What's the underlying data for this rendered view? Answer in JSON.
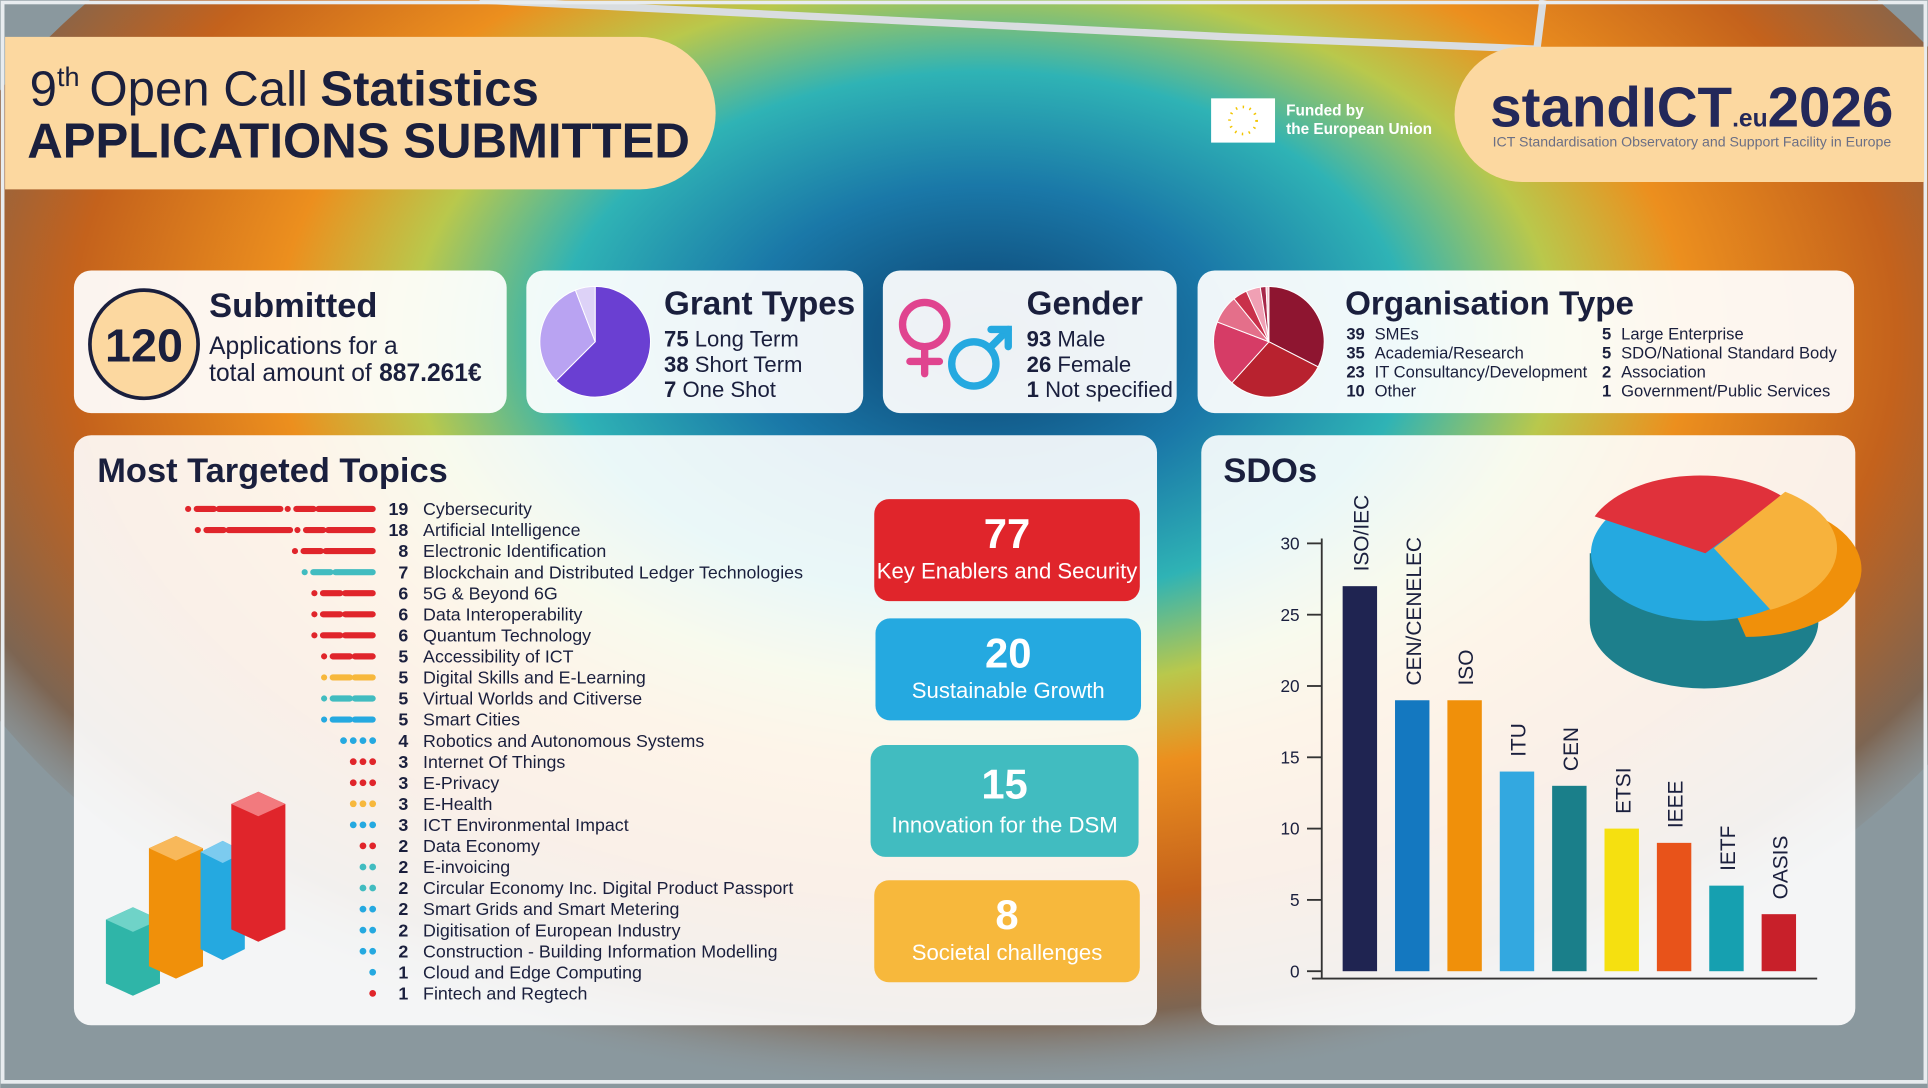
{
  "header": {
    "number": "9",
    "ordinal": "th",
    "call": "Open Call",
    "statistics": "Statistics",
    "subtitle": "APPLICATIONS SUBMITTED"
  },
  "funding": {
    "line1": "Funded by",
    "line2": "the European Union"
  },
  "logo": {
    "name_a": "stand",
    "name_b": "ICT",
    "domain": ".eu",
    "year": "2026",
    "tagline": "ICT Standardisation Observatory and Support Facility in Europe"
  },
  "submitted": {
    "title": "Submitted",
    "count": 120,
    "line1": "Applications for a",
    "line2": "total amount of",
    "amount": "887.261€"
  },
  "gender": {
    "title": "Gender",
    "items": [
      {
        "value": 93,
        "label": "Male"
      },
      {
        "value": 26,
        "label": "Female"
      },
      {
        "value": 1,
        "label": "Not specified"
      }
    ]
  },
  "pillars": [
    {
      "value": 77,
      "label": "Key Enablers and Security",
      "color": "#e0252b"
    },
    {
      "value": 20,
      "label": "Sustainable Growth",
      "color": "#25a9e0"
    },
    {
      "value": 15,
      "label": "Innovation for the DSM",
      "color": "#41bcc0"
    },
    {
      "value": 8,
      "label": "Societal challenges",
      "color": "#f7b83c"
    }
  ],
  "chart_data": [
    {
      "type": "pie",
      "title": "Grant Types",
      "categories": [
        "Long Term",
        "Short Term",
        "One Shot"
      ],
      "values": [
        75,
        38,
        7
      ],
      "colors": [
        "#6a3fd2",
        "#b9a3f2",
        "#ddd2f7"
      ]
    },
    {
      "type": "pie",
      "title": "Organisation Type",
      "categories": [
        "SMEs",
        "Academia/Research",
        "IT Consultancy/Development",
        "Other",
        "Large Enterprise",
        "SDO/National Standard Body",
        "Association",
        "Government/Public Services"
      ],
      "values": [
        39,
        35,
        23,
        10,
        5,
        5,
        2,
        1
      ],
      "colors": [
        "#8e1530",
        "#b8222f",
        "#d63c66",
        "#e46f8a",
        "#c9304a",
        "#f0a0b4",
        "#a8284a",
        "#f6c6d2"
      ]
    },
    {
      "type": "bar",
      "orientation": "horizontal",
      "title": "Most Targeted Topics",
      "categories": [
        "Cybersecurity",
        "Artificial Intelligence",
        "Electronic Identification",
        "Blockchain and Distributed Ledger Technologies",
        "5G & Beyond 6G",
        "Data Interoperability",
        "Quantum Technology",
        "Accessibility of ICT",
        "Digital Skills and E-Learning",
        "Virtual Worlds and Citiverse",
        "Smart Cities",
        "Robotics and Autonomous Systems",
        "Internet Of Things",
        "E-Privacy",
        "E-Health",
        "ICT Environmental Impact",
        "Data Economy",
        "E-invoicing",
        "Circular Economy Inc. Digital Product Passport",
        "Smart Grids and Smart Metering",
        "Digitisation of European Industry",
        "Construction - Building Information Modelling",
        "Cloud and Edge Computing",
        "Fintech and Regtech"
      ],
      "values": [
        19,
        18,
        8,
        7,
        6,
        6,
        6,
        5,
        5,
        5,
        5,
        4,
        3,
        3,
        3,
        3,
        2,
        2,
        2,
        2,
        2,
        2,
        1,
        1
      ],
      "colors": [
        "#e0252b",
        "#e0252b",
        "#e0252b",
        "#41bcc0",
        "#e0252b",
        "#e0252b",
        "#e0252b",
        "#e0252b",
        "#f7b83c",
        "#41bcc0",
        "#25a9e0",
        "#25a9e0",
        "#e0252b",
        "#e0252b",
        "#f7b83c",
        "#25a9e0",
        "#e0252b",
        "#41bcc0",
        "#41bcc0",
        "#25a9e0",
        "#25a9e0",
        "#25a9e0",
        "#25a9e0",
        "#e0252b"
      ]
    },
    {
      "type": "bar",
      "title": "SDOs",
      "categories": [
        "ISO/IEC",
        "CEN/CENELEC",
        "ISO",
        "ITU",
        "CEN",
        "ETSI",
        "IEEE",
        "IETF",
        "OASIS"
      ],
      "values": [
        27,
        19,
        19,
        14,
        13,
        10,
        9,
        6,
        4
      ],
      "colors": [
        "#1f2451",
        "#1478c0",
        "#f0900a",
        "#33a8e0",
        "#1a7f8a",
        "#f5e010",
        "#e8531a",
        "#16a0b0",
        "#c8202a"
      ],
      "ylim": [
        0,
        30
      ],
      "yticks": [
        0,
        5,
        10,
        15,
        20,
        25,
        30
      ]
    }
  ]
}
